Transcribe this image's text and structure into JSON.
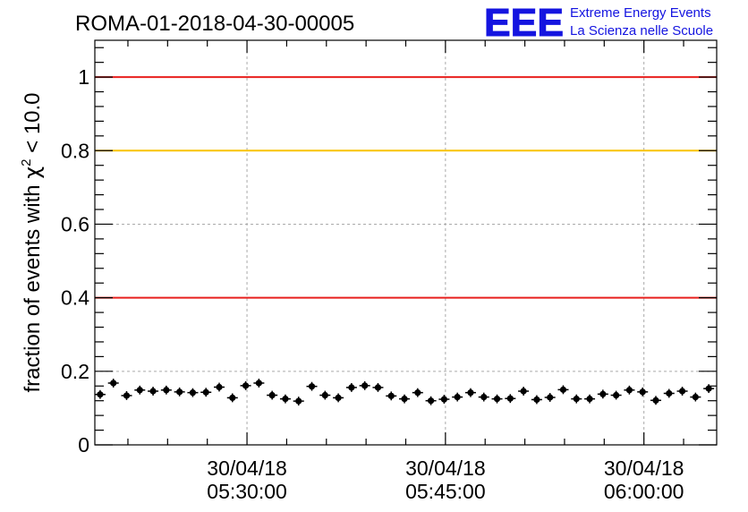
{
  "chart_data": {
    "type": "scatter",
    "title": "ROMA-01-2018-04-30-00005",
    "ylabel": "fraction of events with χ² < 10.0",
    "ylabel_parts": {
      "prefix": "fraction of events with ",
      "symbol": "χ",
      "sup": "2",
      "suffix": " < 10.0"
    },
    "xlabel": "",
    "ylim": [
      0,
      1.1
    ],
    "xlim_minutes": [
      0,
      47
    ],
    "y_ticks": [
      0,
      0.2,
      0.4,
      0.6,
      0.8,
      1
    ],
    "y_tick_labels": [
      "0",
      "0.2",
      "0.4",
      "0.6",
      "0.8",
      "1"
    ],
    "x_ticks": [
      {
        "t": 11.5,
        "date": "30/04/18",
        "time": "05:30:00"
      },
      {
        "t": 26.5,
        "date": "30/04/18",
        "time": "05:45:00"
      },
      {
        "t": 41.5,
        "date": "30/04/18",
        "time": "06:00:00"
      }
    ],
    "grid": true,
    "reference_lines": [
      {
        "y": 1.0,
        "color": "#e8201e"
      },
      {
        "y": 0.8,
        "color": "#f9c300"
      },
      {
        "y": 0.4,
        "color": "#e8201e"
      }
    ],
    "series": [
      {
        "color": "#000000",
        "x": [
          0.4,
          1.4,
          2.4,
          3.4,
          4.4,
          5.4,
          6.4,
          7.4,
          8.4,
          9.4,
          10.4,
          11.4,
          12.4,
          13.4,
          14.4,
          15.4,
          16.4,
          17.4,
          18.4,
          19.4,
          20.4,
          21.4,
          22.4,
          23.4,
          24.4,
          25.4,
          26.4,
          27.4,
          28.4,
          29.4,
          30.4,
          31.4,
          32.4,
          33.4,
          34.4,
          35.4,
          36.4,
          37.4,
          38.4,
          39.4,
          40.4,
          41.4,
          42.4,
          43.4,
          44.4,
          45.4,
          46.4
        ],
        "y": [
          0.137,
          0.168,
          0.134,
          0.149,
          0.146,
          0.149,
          0.144,
          0.142,
          0.143,
          0.157,
          0.128,
          0.161,
          0.168,
          0.135,
          0.125,
          0.119,
          0.159,
          0.135,
          0.128,
          0.156,
          0.161,
          0.156,
          0.133,
          0.125,
          0.142,
          0.12,
          0.124,
          0.13,
          0.142,
          0.13,
          0.125,
          0.126,
          0.146,
          0.123,
          0.129,
          0.15,
          0.125,
          0.125,
          0.138,
          0.135,
          0.149,
          0.144,
          0.121,
          0.14,
          0.146,
          0.13,
          0.153
        ],
        "yerr": 0.012
      }
    ]
  },
  "logo": {
    "mark": "EEE",
    "line1": "Extreme Energy Events",
    "line2": "La Scienza nelle Scuole",
    "color": "#1414e0"
  }
}
